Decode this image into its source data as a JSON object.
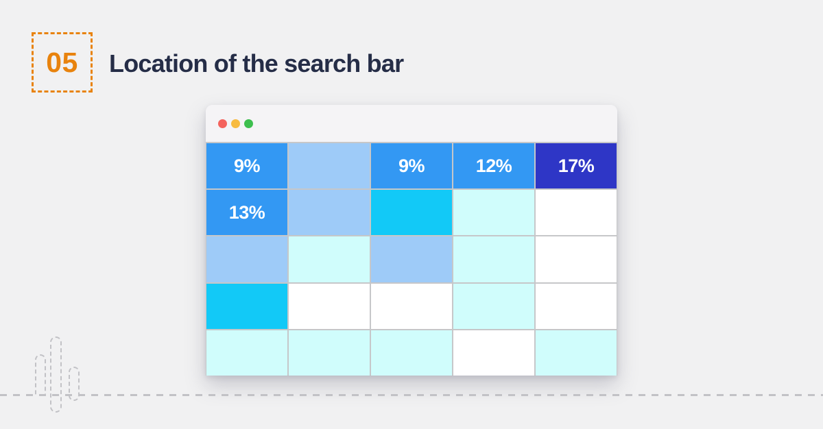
{
  "theme": {
    "page_background": "#f1f1f2",
    "accent_orange": "#e8830e",
    "title_color": "#252d47",
    "gridline_color": "#c6c7c9",
    "titlebar_background": "#f5f4f6",
    "decoration_color": "#c2c2c6"
  },
  "header": {
    "step_number": "05",
    "title": "Location of the search bar"
  },
  "browser_window": {
    "controls": [
      {
        "name": "close-button",
        "color": "#f4635d"
      },
      {
        "name": "minimize-button",
        "color": "#f7bb40"
      },
      {
        "name": "zoom-button",
        "color": "#3dbf4e"
      }
    ]
  },
  "chart_data": {
    "type": "heatmap",
    "title": "Location of the search bar",
    "rows": 5,
    "cols": 5,
    "legend_position": "none",
    "palette": {
      "blue": "#3398f3",
      "dark_blue": "#2e36c6",
      "light_blue": "#9ecbf8",
      "cyan": "#12c9f7",
      "light_cyan": "#d0fdfc",
      "white": "#ffffff"
    },
    "cells": [
      [
        {
          "level": "blue",
          "label": "9%"
        },
        {
          "level": "light_blue",
          "label": ""
        },
        {
          "level": "blue",
          "label": "9%"
        },
        {
          "level": "blue",
          "label": "12%"
        },
        {
          "level": "dark_blue",
          "label": "17%"
        }
      ],
      [
        {
          "level": "blue",
          "label": "13%"
        },
        {
          "level": "light_blue",
          "label": ""
        },
        {
          "level": "cyan",
          "label": ""
        },
        {
          "level": "light_cyan",
          "label": ""
        },
        {
          "level": "white",
          "label": ""
        }
      ],
      [
        {
          "level": "light_blue",
          "label": ""
        },
        {
          "level": "light_cyan",
          "label": ""
        },
        {
          "level": "light_blue",
          "label": ""
        },
        {
          "level": "light_cyan",
          "label": ""
        },
        {
          "level": "white",
          "label": ""
        }
      ],
      [
        {
          "level": "cyan",
          "label": ""
        },
        {
          "level": "white",
          "label": ""
        },
        {
          "level": "white",
          "label": ""
        },
        {
          "level": "light_cyan",
          "label": ""
        },
        {
          "level": "white",
          "label": ""
        }
      ],
      [
        {
          "level": "light_cyan",
          "label": ""
        },
        {
          "level": "light_cyan",
          "label": ""
        },
        {
          "level": "light_cyan",
          "label": ""
        },
        {
          "level": "white",
          "label": ""
        },
        {
          "level": "light_cyan",
          "label": ""
        }
      ]
    ]
  }
}
